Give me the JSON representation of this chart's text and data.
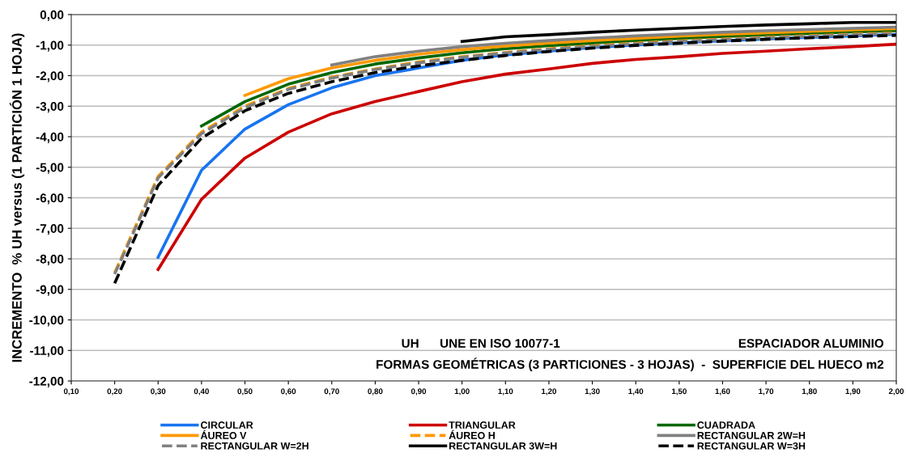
{
  "chart_data": {
    "type": "line",
    "ylabel": "INCREMENTO  % UH versus (1 PARTICIÓN 1 HOJA)",
    "annotations": [
      "UH      UNE EN ISO 10077-1",
      "ESPACIADOR ALUMINIO",
      "FORMAS GEOMÉTRICAS (3 PARTICIONES - 3 HOJAS)  -  SUPERFICIE DEL HUECO m2"
    ],
    "x": [
      0.2,
      0.3,
      0.4,
      0.5,
      0.6,
      0.7,
      0.8,
      0.9,
      1.0,
      1.1,
      1.2,
      1.3,
      1.4,
      1.5,
      1.6,
      1.7,
      1.8,
      1.9,
      2.0
    ],
    "series": [
      {
        "name": "CIRCULAR",
        "color": "#1874f0",
        "line_style": "solid",
        "values": [
          null,
          -7.95,
          -5.1,
          -3.75,
          -2.95,
          -2.4,
          -2.0,
          -1.75,
          -1.5,
          -1.32,
          -1.2,
          -1.08,
          -1.0,
          -0.92,
          -0.86,
          -0.8,
          -0.75,
          -0.7,
          -0.65
        ]
      },
      {
        "name": "TRIANGULAR",
        "color": "#cc0000",
        "line_style": "solid",
        "values": [
          null,
          -8.35,
          -6.05,
          -4.7,
          -3.85,
          -3.25,
          -2.85,
          -2.52,
          -2.2,
          -1.95,
          -1.78,
          -1.6,
          -1.47,
          -1.38,
          -1.27,
          -1.2,
          -1.12,
          -1.05,
          -0.97
        ]
      },
      {
        "name": "CUADRADA",
        "color": "#006600",
        "line_style": "solid",
        "values": [
          null,
          null,
          -3.65,
          -2.85,
          -2.28,
          -1.9,
          -1.62,
          -1.42,
          -1.25,
          -1.12,
          -1.02,
          -0.93,
          -0.85,
          -0.78,
          -0.72,
          -0.67,
          -0.62,
          -0.57,
          -0.53
        ]
      },
      {
        "name": "ÁUREO V",
        "color": "#ff9900",
        "line_style": "solid",
        "values": [
          null,
          null,
          null,
          -2.65,
          -2.1,
          -1.75,
          -1.5,
          -1.3,
          -1.15,
          -1.03,
          -0.93,
          -0.85,
          -0.78,
          -0.71,
          -0.65,
          -0.6,
          -0.55,
          -0.5,
          -0.46
        ]
      },
      {
        "name": "ÁUREO H",
        "color": "#ff9900",
        "line_style": "dashed",
        "values": [
          -8.45,
          -5.3,
          -3.85,
          -3.0,
          -2.42,
          -2.05,
          -1.78,
          -1.55,
          -1.38,
          -1.24,
          -1.12,
          -1.02,
          -0.94,
          -0.86,
          -0.8,
          -0.74,
          -0.69,
          -0.64,
          -0.6
        ]
      },
      {
        "name": "RECTANGULAR 2W=H",
        "color": "#808080",
        "line_style": "solid",
        "values": [
          null,
          null,
          null,
          null,
          null,
          -1.65,
          -1.38,
          -1.2,
          -1.05,
          -0.94,
          -0.85,
          -0.77,
          -0.7,
          -0.64,
          -0.58,
          -0.53,
          -0.49,
          -0.45,
          -0.41
        ]
      },
      {
        "name": "RECTANGULAR W=2H",
        "color": "#808080",
        "line_style": "dashed",
        "values": [
          -8.5,
          -5.35,
          -3.9,
          -3.05,
          -2.45,
          -2.08,
          -1.8,
          -1.58,
          -1.4,
          -1.26,
          -1.14,
          -1.04,
          -0.96,
          -0.88,
          -0.82,
          -0.76,
          -0.71,
          -0.66,
          -0.62
        ]
      },
      {
        "name": "RECTANGULAR 3W=H",
        "color": "#000000",
        "line_style": "solid",
        "values": [
          null,
          null,
          null,
          null,
          null,
          null,
          null,
          null,
          -0.88,
          -0.73,
          -0.66,
          -0.58,
          -0.51,
          -0.45,
          -0.39,
          -0.34,
          -0.3,
          -0.26,
          -0.26
        ]
      },
      {
        "name": "RECTANGULAR W=3H",
        "color": "#000000",
        "line_style": "dashed",
        "values": [
          -8.8,
          -5.6,
          -4.05,
          -3.15,
          -2.58,
          -2.2,
          -1.9,
          -1.68,
          -1.5,
          -1.34,
          -1.21,
          -1.1,
          -1.01,
          -0.94,
          -0.87,
          -0.81,
          -0.76,
          -0.72,
          -0.68
        ]
      }
    ],
    "xlim": [
      0.1,
      2.0
    ],
    "xticks": [
      {
        "value": 0.1,
        "label": "0,10"
      },
      {
        "value": 0.2,
        "label": "0,20"
      },
      {
        "value": 0.3,
        "label": "0,30"
      },
      {
        "value": 0.4,
        "label": "0,40"
      },
      {
        "value": 0.5,
        "label": "0,50"
      },
      {
        "value": 0.6,
        "label": "0,60"
      },
      {
        "value": 0.7,
        "label": "0,70"
      },
      {
        "value": 0.8,
        "label": "0,80"
      },
      {
        "value": 0.9,
        "label": "0,90"
      },
      {
        "value": 1.0,
        "label": "1,00"
      },
      {
        "value": 1.1,
        "label": "1,10"
      },
      {
        "value": 1.2,
        "label": "1,20"
      },
      {
        "value": 1.3,
        "label": "1,30"
      },
      {
        "value": 1.4,
        "label": "1,40"
      },
      {
        "value": 1.5,
        "label": "1,50"
      },
      {
        "value": 1.6,
        "label": "1,60"
      },
      {
        "value": 1.7,
        "label": "1,70"
      },
      {
        "value": 1.8,
        "label": "1,80"
      },
      {
        "value": 1.9,
        "label": "1,90"
      },
      {
        "value": 2.0,
        "label": "2,00"
      }
    ],
    "ylim": [
      -12,
      0
    ],
    "yticks": [
      {
        "value": 0,
        "label": "0,00"
      },
      {
        "value": -1,
        "label": "-1,00"
      },
      {
        "value": -2,
        "label": "-2,00"
      },
      {
        "value": -3,
        "label": "-3,00"
      },
      {
        "value": -4,
        "label": "-4,00"
      },
      {
        "value": -5,
        "label": "-5,00"
      },
      {
        "value": -6,
        "label": "-6,00"
      },
      {
        "value": -7,
        "label": "-7,00"
      },
      {
        "value": -8,
        "label": "-8,00"
      },
      {
        "value": -9,
        "label": "-9,00"
      },
      {
        "value": -10,
        "label": "-10,00"
      },
      {
        "value": -11,
        "label": "-11,00"
      },
      {
        "value": -12,
        "label": "-12,00"
      }
    ],
    "grid": "y",
    "legend": "bottom",
    "marker": "none"
  }
}
